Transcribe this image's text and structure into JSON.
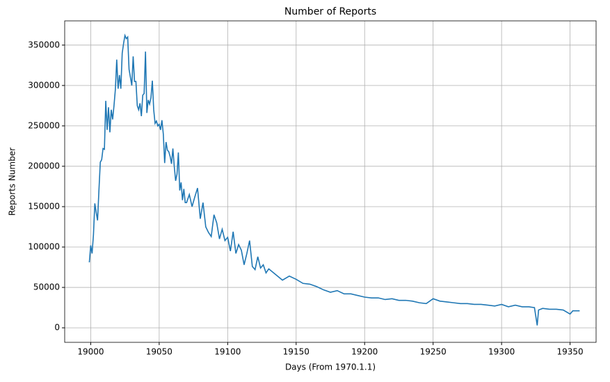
{
  "chart_data": {
    "type": "line",
    "title": "Number of Reports",
    "x_label": "Days (From 1970.1.1)",
    "y_label": "Reports Number",
    "x": [
      18999,
      19000,
      19001,
      19002,
      19003,
      19004,
      19005,
      19006,
      19007,
      19008,
      19009,
      19010,
      19011,
      19012,
      19013,
      19014,
      19015,
      19016,
      19017,
      19018,
      19019,
      19020,
      19021,
      19022,
      19023,
      19024,
      19025,
      19026,
      19027,
      19028,
      19029,
      19030,
      19031,
      19032,
      19033,
      19034,
      19035,
      19036,
      19037,
      19038,
      19039,
      19040,
      19041,
      19042,
      19043,
      19044,
      19045,
      19046,
      19047,
      19048,
      19049,
      19050,
      19051,
      19052,
      19053,
      19054,
      19055,
      19056,
      19057,
      19058,
      19059,
      19060,
      19061,
      19062,
      19063,
      19064,
      19065,
      19066,
      19067,
      19068,
      19069,
      19070,
      19072,
      19074,
      19076,
      19078,
      19080,
      19082,
      19084,
      19086,
      19088,
      19090,
      19092,
      19094,
      19096,
      19098,
      19100,
      19102,
      19104,
      19106,
      19108,
      19110,
      19112,
      19114,
      19116,
      19118,
      19120,
      19122,
      19124,
      19126,
      19128,
      19130,
      19135,
      19140,
      19145,
      19150,
      19155,
      19160,
      19165,
      19170,
      19175,
      19180,
      19185,
      19190,
      19195,
      19200,
      19205,
      19210,
      19215,
      19220,
      19225,
      19230,
      19235,
      19240,
      19245,
      19250,
      19255,
      19260,
      19265,
      19270,
      19275,
      19280,
      19285,
      19290,
      19295,
      19300,
      19305,
      19310,
      19315,
      19320,
      19324,
      19326,
      19327,
      19330,
      19335,
      19340,
      19345,
      19350,
      19352,
      19357
    ],
    "series": [
      {
        "name": "Reports",
        "color": "#1f77b4",
        "values": [
          81000,
          102000,
          92000,
          115000,
          154000,
          143000,
          133000,
          170000,
          205000,
          208000,
          222000,
          221000,
          281000,
          245000,
          273000,
          242000,
          270000,
          258000,
          275000,
          295000,
          332000,
          296000,
          313000,
          296000,
          340000,
          352000,
          362000,
          358000,
          360000,
          320000,
          310000,
          300000,
          336000,
          305000,
          305000,
          275000,
          270000,
          278000,
          262000,
          288000,
          290000,
          342000,
          266000,
          282000,
          277000,
          285000,
          306000,
          270000,
          253000,
          256000,
          250000,
          252000,
          245000,
          257000,
          240000,
          204000,
          230000,
          220000,
          218000,
          212000,
          203000,
          222000,
          200000,
          182000,
          190000,
          217000,
          170000,
          180000,
          158000,
          172000,
          155000,
          155000,
          165000,
          150000,
          162000,
          173000,
          135000,
          155000,
          125000,
          118000,
          113000,
          140000,
          130000,
          110000,
          122000,
          108000,
          112000,
          95000,
          119000,
          92000,
          103000,
          96000,
          78000,
          92000,
          108000,
          76000,
          72000,
          88000,
          74000,
          78000,
          68000,
          73000,
          66000,
          59000,
          64000,
          60000,
          55000,
          54000,
          51000,
          47000,
          44000,
          46000,
          42000,
          42000,
          40000,
          38000,
          37000,
          37000,
          35000,
          36000,
          34000,
          34000,
          33000,
          31000,
          30000,
          36000,
          33000,
          32000,
          31000,
          30000,
          30000,
          29000,
          29000,
          28000,
          27000,
          29000,
          26000,
          28000,
          26000,
          26000,
          25000,
          3000,
          22000,
          24000,
          23000,
          23000,
          22000,
          17000,
          21000,
          21000
        ]
      }
    ],
    "xlim": [
      18981,
      19369
    ],
    "ylim": [
      -18000,
      380000
    ],
    "xticks": [
      19000,
      19050,
      19100,
      19150,
      19200,
      19250,
      19300,
      19350
    ],
    "yticks": [
      0,
      50000,
      100000,
      150000,
      200000,
      250000,
      300000,
      350000
    ],
    "grid": true
  }
}
